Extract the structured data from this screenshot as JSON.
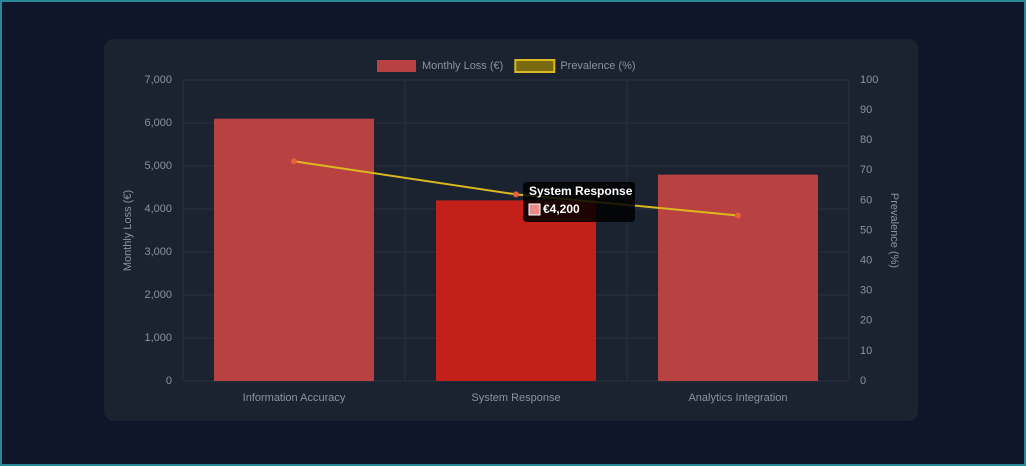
{
  "chart_data": {
    "type": "bar",
    "categories": [
      "Information Accuracy",
      "System Response",
      "Analytics Integration"
    ],
    "series": [
      {
        "name": "Monthly Loss (€)",
        "type": "bar",
        "color": "#b84242",
        "values": [
          6100,
          4200,
          4800
        ]
      },
      {
        "name": "Prevalence (%)",
        "type": "line",
        "axis": "y2",
        "color": "#d9b820",
        "point_color": "#e8613a",
        "values": [
          73,
          62,
          55
        ]
      }
    ],
    "y_label": "Monthly Loss (€)",
    "y2_label": "Prevalence (%)",
    "ylim": [
      0,
      7000
    ],
    "yticks": [
      0,
      {
        "value": 1000,
        "label": "1,000"
      },
      {
        "value": 2000,
        "label": "2,000"
      },
      {
        "value": 3000,
        "label": "3,000"
      },
      {
        "value": 4000,
        "label": "4,000"
      },
      {
        "value": 5000,
        "label": "5,000"
      },
      {
        "value": 6000,
        "label": "6,000"
      },
      {
        "value": 7000,
        "label": "7,000"
      }
    ],
    "y2lim": [
      0,
      100
    ],
    "y2ticks": [
      0,
      10,
      20,
      30,
      40,
      50,
      60,
      70,
      80,
      90,
      100
    ],
    "grid": true,
    "legend": "top",
    "highlight_color": "#c4201a",
    "tooltip": {
      "title": "System Response",
      "label": "€4,200"
    }
  }
}
